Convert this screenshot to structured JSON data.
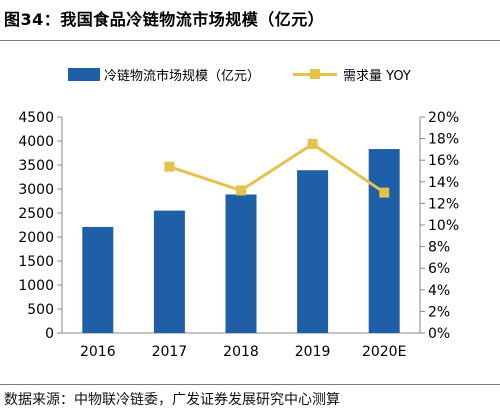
{
  "title": "图34：我国食品冷链物流市场规模（亿元）",
  "source": "数据来源：中物联冷链委，广发证券发展研究中心测算",
  "colors": {
    "bar": "#1f5fa8",
    "line": "#e5c24a",
    "axis": "#888888",
    "text": "#000000"
  },
  "chart_data": {
    "type": "bar",
    "categories": [
      "2016",
      "2017",
      "2018",
      "2019",
      "2020E"
    ],
    "series": [
      {
        "name": "冷链物流市场规模（亿元）",
        "type": "bar",
        "axis": "left",
        "values": [
          2210,
          2550,
          2886,
          3391,
          3832
        ]
      },
      {
        "name": "需求量 YOY",
        "type": "line",
        "axis": "right",
        "values": [
          null,
          15.4,
          13.2,
          17.5,
          13.0
        ]
      }
    ],
    "yleft": {
      "min": 0,
      "max": 4500,
      "step": 500,
      "ticks": [
        "0",
        "500",
        "1000",
        "1500",
        "2000",
        "2500",
        "3000",
        "3500",
        "4000",
        "4500"
      ]
    },
    "yright": {
      "min": 0,
      "max": 20,
      "step": 2,
      "ticks": [
        "0%",
        "2%",
        "4%",
        "6%",
        "8%",
        "10%",
        "12%",
        "14%",
        "16%",
        "18%",
        "20%"
      ]
    },
    "legend": "top"
  }
}
